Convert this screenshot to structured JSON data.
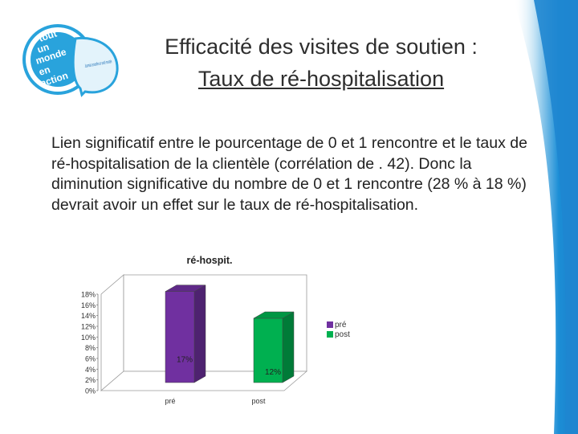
{
  "slide": {
    "title_line1": "Efficacité des visites de soutien :",
    "title_line2": "Taux de ré-hospitalisation",
    "body": "Lien significatif entre le pourcentage de 0 et 1 rencontre et le taux de ré-hospitalisation de la clientèle (corrélation de . 42). Donc la diminution significative du nombre de 0 et 1 rencontre (28 % à 18 %) devrait avoir un effet sur le taux de ré-hospitalisation."
  },
  "logo": {
    "text_lines": [
      "tout",
      "un",
      "monde",
      "en",
      "action"
    ],
    "tagline": "Journées annuelles en santé mentale"
  },
  "chart_data": {
    "type": "bar",
    "title": "ré-hospit.",
    "categories": [
      "pré",
      "post"
    ],
    "values": [
      17,
      12
    ],
    "value_labels": [
      "17%",
      "12%"
    ],
    "ylim": [
      0,
      18
    ],
    "yticks": [
      "0%",
      "2%",
      "4%",
      "6%",
      "8%",
      "10%",
      "12%",
      "14%",
      "16%",
      "18%"
    ],
    "colors": [
      "#7030a0",
      "#00b050"
    ],
    "legend": [
      "pré",
      "post"
    ],
    "legend_position": "right",
    "grid": false,
    "style": "3d"
  }
}
